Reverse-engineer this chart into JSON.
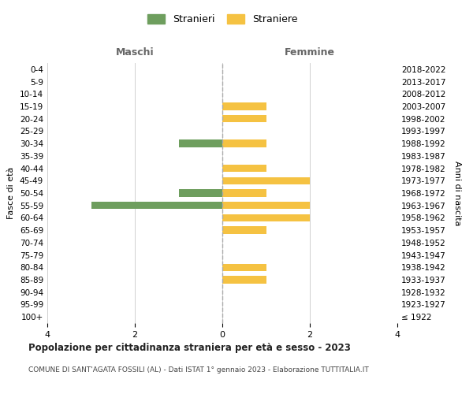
{
  "age_groups": [
    "100+",
    "95-99",
    "90-94",
    "85-89",
    "80-84",
    "75-79",
    "70-74",
    "65-69",
    "60-64",
    "55-59",
    "50-54",
    "45-49",
    "40-44",
    "35-39",
    "30-34",
    "25-29",
    "20-24",
    "15-19",
    "10-14",
    "5-9",
    "0-4"
  ],
  "birth_years": [
    "≤ 1922",
    "1923-1927",
    "1928-1932",
    "1933-1937",
    "1938-1942",
    "1943-1947",
    "1948-1952",
    "1953-1957",
    "1958-1962",
    "1963-1967",
    "1968-1972",
    "1973-1977",
    "1978-1982",
    "1983-1987",
    "1988-1992",
    "1993-1997",
    "1998-2002",
    "2003-2007",
    "2008-2012",
    "2013-2017",
    "2018-2022"
  ],
  "maschi": [
    0,
    0,
    0,
    0,
    0,
    0,
    0,
    0,
    0,
    3,
    1,
    0,
    0,
    0,
    1,
    0,
    0,
    0,
    0,
    0,
    0
  ],
  "femmine": [
    0,
    0,
    0,
    1,
    1,
    0,
    0,
    1,
    2,
    2,
    1,
    2,
    1,
    0,
    1,
    0,
    1,
    1,
    0,
    0,
    0
  ],
  "maschi_color": "#6e9e5e",
  "femmine_color": "#f5c242",
  "title": "Popolazione per cittadinanza straniera per età e sesso - 2023",
  "subtitle": "COMUNE DI SANT'AGATA FOSSILI (AL) - Dati ISTAT 1° gennaio 2023 - Elaborazione TUTTITALIA.IT",
  "ylabel_left": "Fasce di età",
  "ylabel_right": "Anni di nascita",
  "xlabel_left": "Maschi",
  "xlabel_right": "Femmine",
  "legend_stranieri": "Stranieri",
  "legend_straniere": "Straniere",
  "xlim": 4,
  "background_color": "#ffffff",
  "grid_color": "#d0d0d0",
  "dashed_line_color": "#aaaaaa"
}
